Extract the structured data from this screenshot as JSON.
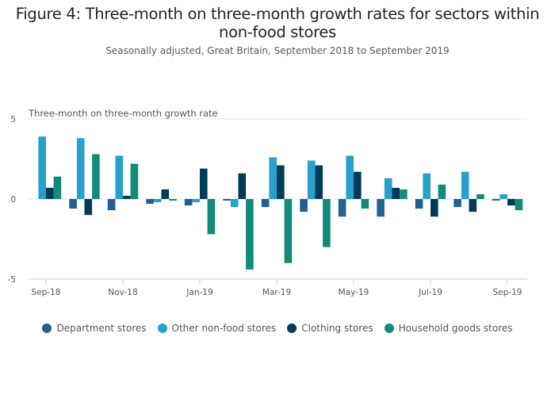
{
  "chart_data": {
    "type": "bar",
    "title": "Figure 4: Three-month on three-month growth rates for sectors within non-food stores",
    "subtitle": "Seasonally adjusted, Great Britain, September 2018 to September 2019",
    "ylabel": "Three-month on three-month growth rate",
    "xlabel": "",
    "ylim": [
      -5,
      5
    ],
    "yticks": [
      5,
      0,
      -5
    ],
    "yticklabels": [
      "5",
      "0",
      "-5"
    ],
    "categories": [
      "Sep-18",
      "Oct-18",
      "Nov-18",
      "Dec-18",
      "Jan-19",
      "Feb-19",
      "Mar-19",
      "Apr-19",
      "May-19",
      "Jun-19",
      "Jul-19",
      "Aug-19",
      "Sep-19"
    ],
    "xticklabels": [
      "Sep-18",
      "Nov-18",
      "Jan-19",
      "Mar-19",
      "May-19",
      "Jul-19",
      "Sep-19"
    ],
    "grid": true,
    "legend_position": "bottom",
    "series": [
      {
        "name": "Department stores",
        "color": "#206095",
        "values": [
          0.0,
          -0.6,
          -0.7,
          -0.3,
          -0.4,
          -0.1,
          -0.5,
          -0.8,
          -1.1,
          -1.1,
          -0.6,
          -0.5,
          -0.1
        ]
      },
      {
        "name": "Other non-food stores",
        "color": "#27a0cc",
        "values": [
          3.9,
          3.8,
          2.7,
          -0.2,
          -0.2,
          -0.5,
          2.6,
          2.4,
          2.7,
          1.3,
          1.6,
          1.7,
          0.3
        ]
      },
      {
        "name": "Clothing stores",
        "color": "#003c57",
        "values": [
          0.7,
          -1.0,
          0.2,
          0.6,
          1.9,
          1.6,
          2.1,
          2.1,
          1.7,
          0.7,
          -1.1,
          -0.8,
          -0.4
        ]
      },
      {
        "name": "Household goods stores",
        "color": "#118c7b",
        "values": [
          1.4,
          2.8,
          2.2,
          -0.1,
          -2.2,
          -4.4,
          -4.0,
          -3.0,
          -0.6,
          0.6,
          0.9,
          0.3,
          -0.7
        ]
      }
    ]
  }
}
